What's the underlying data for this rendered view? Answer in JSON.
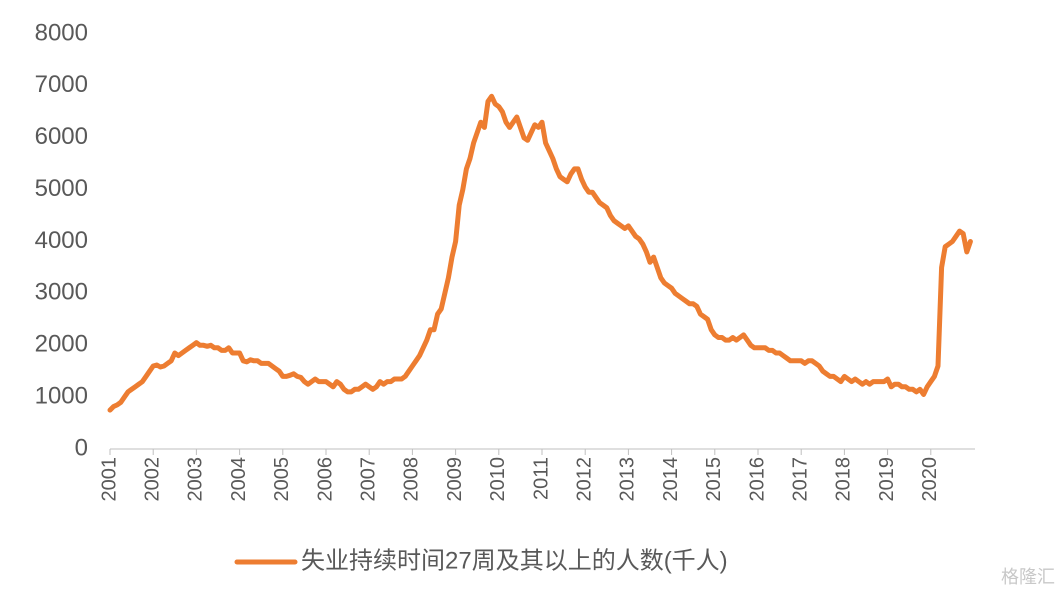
{
  "chart_data": {
    "type": "line",
    "categories": [
      "2001",
      null,
      null,
      null,
      null,
      null,
      null,
      null,
      null,
      null,
      null,
      null,
      "2002",
      null,
      null,
      null,
      null,
      null,
      null,
      null,
      null,
      null,
      null,
      null,
      "2003",
      null,
      null,
      null,
      null,
      null,
      null,
      null,
      null,
      null,
      null,
      null,
      "2004",
      null,
      null,
      null,
      null,
      null,
      null,
      null,
      null,
      null,
      null,
      null,
      "2005",
      null,
      null,
      null,
      null,
      null,
      null,
      null,
      null,
      null,
      null,
      null,
      "2006",
      null,
      null,
      null,
      null,
      null,
      null,
      null,
      null,
      null,
      null,
      null,
      "2007",
      null,
      null,
      null,
      null,
      null,
      null,
      null,
      null,
      null,
      null,
      null,
      "2008",
      null,
      null,
      null,
      null,
      null,
      null,
      null,
      null,
      null,
      null,
      null,
      "2009",
      null,
      null,
      null,
      null,
      null,
      null,
      null,
      null,
      null,
      null,
      null,
      "2010",
      null,
      null,
      null,
      null,
      null,
      null,
      null,
      null,
      null,
      null,
      null,
      "2011",
      null,
      null,
      null,
      null,
      null,
      null,
      null,
      null,
      null,
      null,
      null,
      "2012",
      null,
      null,
      null,
      null,
      null,
      null,
      null,
      null,
      null,
      null,
      null,
      "2013",
      null,
      null,
      null,
      null,
      null,
      null,
      null,
      null,
      null,
      null,
      null,
      "2014",
      null,
      null,
      null,
      null,
      null,
      null,
      null,
      null,
      null,
      null,
      null,
      "2015",
      null,
      null,
      null,
      null,
      null,
      null,
      null,
      null,
      null,
      null,
      null,
      "2016",
      null,
      null,
      null,
      null,
      null,
      null,
      null,
      null,
      null,
      null,
      null,
      "2017",
      null,
      null,
      null,
      null,
      null,
      null,
      null,
      null,
      null,
      null,
      null,
      "2018",
      null,
      null,
      null,
      null,
      null,
      null,
      null,
      null,
      null,
      null,
      null,
      "2019",
      null,
      null,
      null,
      null,
      null,
      null,
      null,
      null,
      null,
      null,
      null,
      "2020",
      null,
      null,
      null,
      null,
      null,
      null,
      null,
      null,
      null,
      null,
      null
    ],
    "series": [
      {
        "name": "失业持续时间27周及其以上的人数(千人)",
        "color": "#ed7d31",
        "values": [
          750,
          820,
          850,
          900,
          1000,
          1100,
          1150,
          1200,
          1250,
          1300,
          1400,
          1500,
          1600,
          1620,
          1580,
          1600,
          1650,
          1700,
          1850,
          1800,
          1850,
          1900,
          1950,
          2000,
          2050,
          2000,
          2000,
          1980,
          2000,
          1950,
          1950,
          1900,
          1900,
          1950,
          1850,
          1850,
          1850,
          1700,
          1680,
          1720,
          1700,
          1700,
          1650,
          1650,
          1650,
          1600,
          1550,
          1500,
          1400,
          1400,
          1420,
          1450,
          1400,
          1380,
          1300,
          1250,
          1300,
          1350,
          1300,
          1300,
          1300,
          1250,
          1200,
          1300,
          1250,
          1150,
          1100,
          1100,
          1150,
          1150,
          1200,
          1250,
          1200,
          1150,
          1200,
          1300,
          1250,
          1300,
          1300,
          1350,
          1350,
          1350,
          1400,
          1500,
          1600,
          1700,
          1800,
          1950,
          2100,
          2300,
          2300,
          2600,
          2700,
          3000,
          3300,
          3700,
          4000,
          4700,
          5000,
          5400,
          5600,
          5900,
          6100,
          6300,
          6200,
          6700,
          6800,
          6650,
          6600,
          6500,
          6300,
          6200,
          6300,
          6400,
          6200,
          6000,
          5950,
          6100,
          6250,
          6200,
          6300,
          5900,
          5750,
          5600,
          5400,
          5250,
          5200,
          5150,
          5300,
          5400,
          5400,
          5200,
          5050,
          4950,
          4950,
          4850,
          4750,
          4700,
          4650,
          4500,
          4400,
          4350,
          4300,
          4250,
          4300,
          4200,
          4100,
          4050,
          3950,
          3800,
          3600,
          3700,
          3500,
          3300,
          3200,
          3150,
          3100,
          3000,
          2950,
          2900,
          2850,
          2800,
          2800,
          2750,
          2600,
          2550,
          2500,
          2300,
          2200,
          2150,
          2150,
          2100,
          2100,
          2150,
          2100,
          2150,
          2200,
          2100,
          2000,
          1950,
          1950,
          1950,
          1950,
          1900,
          1900,
          1850,
          1850,
          1800,
          1750,
          1700,
          1700,
          1700,
          1700,
          1650,
          1700,
          1700,
          1650,
          1600,
          1500,
          1450,
          1400,
          1400,
          1350,
          1300,
          1400,
          1350,
          1300,
          1350,
          1300,
          1250,
          1300,
          1250,
          1300,
          1300,
          1300,
          1300,
          1350,
          1200,
          1250,
          1250,
          1200,
          1200,
          1150,
          1150,
          1100,
          1150,
          1050,
          1200,
          1300,
          1400,
          1600,
          3500,
          3900,
          3950,
          4000,
          4100,
          4200,
          4150,
          3800,
          4000
        ]
      }
    ],
    "ylim": [
      0,
      8000
    ],
    "yticks": [
      0,
      1000,
      2000,
      3000,
      4000,
      5000,
      6000,
      7000,
      8000
    ],
    "grid": false,
    "legend": "bottom",
    "watermark": "格隆汇"
  }
}
